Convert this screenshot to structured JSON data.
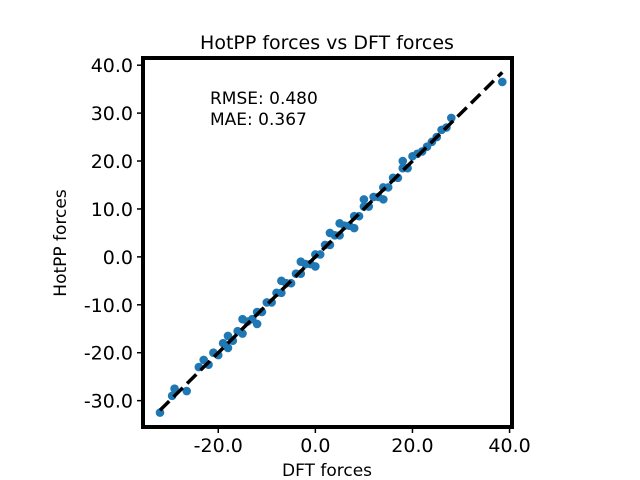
{
  "chart_data": {
    "type": "scatter",
    "title": "HotPP forces vs DFT forces",
    "xlabel": "DFT  forces",
    "ylabel": "HotPP forces",
    "xlim": [
      -35.5,
      40.5
    ],
    "ylim": [
      -35.5,
      41.5
    ],
    "xticks": [
      -20.0,
      0.0,
      20.0,
      40.0
    ],
    "xtick_labels": [
      "-20.0",
      "0.0",
      "20.0",
      "40.0"
    ],
    "yticks": [
      -30.0,
      -20.0,
      -10.0,
      0.0,
      10.0,
      20.0,
      30.0,
      40.0
    ],
    "ytick_labels": [
      "-30.0",
      "-20.0",
      "-10.0",
      "0.0",
      "10.0",
      "20.0",
      "30.0",
      "40.0"
    ],
    "grid": false,
    "marker_color": "#1f77b4",
    "reference_line": {
      "style": "dashed",
      "color": "#000000",
      "x": [
        -32.0,
        38.5
      ],
      "y": [
        -32.0,
        38.5
      ]
    },
    "annotations": [
      "RMSE: 0.480",
      "MAE: 0.367"
    ],
    "series": [
      {
        "points": [
          [
            -32.0,
            -32.5
          ],
          [
            -29.5,
            -29.0
          ],
          [
            -29.0,
            -27.5
          ],
          [
            -26.5,
            -28.0
          ],
          [
            -24.0,
            -23.0
          ],
          [
            -23.0,
            -21.5
          ],
          [
            -22.0,
            -22.5
          ],
          [
            -21.0,
            -20.0
          ],
          [
            -20.0,
            -20.5
          ],
          [
            -19.0,
            -18.0
          ],
          [
            -18.0,
            -19.0
          ],
          [
            -17.0,
            -17.5
          ],
          [
            -16.0,
            -15.5
          ],
          [
            -15.0,
            -16.0
          ],
          [
            -14.0,
            -13.5
          ],
          [
            -13.0,
            -13.0
          ],
          [
            -12.0,
            -11.5
          ],
          [
            -11.0,
            -11.5
          ],
          [
            -10.0,
            -9.5
          ],
          [
            -9.0,
            -9.5
          ],
          [
            -8.0,
            -7.5
          ],
          [
            -7.0,
            -7.5
          ],
          [
            -6.0,
            -5.5
          ],
          [
            -5.0,
            -5.5
          ],
          [
            -4.0,
            -3.5
          ],
          [
            -3.0,
            -3.5
          ],
          [
            -2.0,
            -1.5
          ],
          [
            -1.0,
            -1.5
          ],
          [
            0.0,
            0.5
          ],
          [
            1.0,
            0.5
          ],
          [
            2.0,
            2.5
          ],
          [
            3.0,
            2.5
          ],
          [
            4.0,
            4.5
          ],
          [
            5.0,
            4.5
          ],
          [
            6.0,
            6.5
          ],
          [
            7.0,
            6.5
          ],
          [
            8.0,
            8.5
          ],
          [
            9.0,
            8.5
          ],
          [
            10.0,
            10.5
          ],
          [
            11.0,
            10.5
          ],
          [
            12.0,
            12.5
          ],
          [
            13.0,
            12.5
          ],
          [
            14.0,
            14.5
          ],
          [
            15.0,
            14.5
          ],
          [
            16.0,
            16.5
          ],
          [
            17.0,
            16.5
          ],
          [
            18.0,
            18.5
          ],
          [
            19.0,
            18.5
          ],
          [
            20.0,
            21.0
          ],
          [
            21.0,
            21.5
          ],
          [
            22.0,
            22.0
          ],
          [
            23.0,
            23.0
          ],
          [
            24.0,
            24.0
          ],
          [
            25.0,
            25.0
          ],
          [
            26.0,
            26.5
          ],
          [
            27.0,
            27.0
          ],
          [
            28.0,
            29.0
          ],
          [
            38.5,
            36.5
          ],
          [
            -7.0,
            -5.0
          ],
          [
            -3.0,
            -1.0
          ],
          [
            3.0,
            5.0
          ],
          [
            5.0,
            7.0
          ],
          [
            -12.0,
            -14.0
          ],
          [
            8.0,
            6.0
          ],
          [
            10.0,
            12.0
          ],
          [
            -15.0,
            -13.0
          ],
          [
            14.0,
            12.0
          ],
          [
            -18.0,
            -16.5
          ],
          [
            18.0,
            20.0
          ],
          [
            0.0,
            -2.0
          ]
        ]
      }
    ]
  }
}
